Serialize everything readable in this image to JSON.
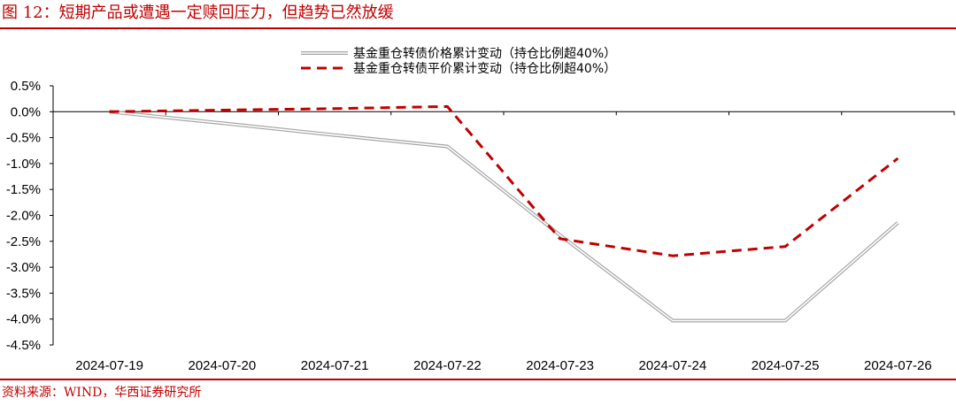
{
  "header": {
    "title": "图 12：短期产品或遭遇一定赎回压力，但趋势已然放缓"
  },
  "footer": {
    "source": "资料来源：WIND，华西证券研究所"
  },
  "colors": {
    "accent": "#c00000",
    "series_1": "#a6a6a6",
    "series_2": "#c00000"
  },
  "chart_data": {
    "type": "line",
    "categories": [
      "2024-07-19",
      "2024-07-20",
      "2024-07-21",
      "2024-07-22",
      "2024-07-23",
      "2024-07-24",
      "2024-07-25",
      "2024-07-26"
    ],
    "y_ticks": [
      "0.5%",
      "0.0%",
      "-0.5%",
      "-1.0%",
      "-1.5%",
      "-2.0%",
      "-2.5%",
      "-3.0%",
      "-3.5%",
      "-4.0%",
      "-4.5%"
    ],
    "ylim": [
      -4.5,
      0.5
    ],
    "ytick_step": 0.5,
    "unit": "%",
    "grid": false,
    "legend_position": "top-right",
    "series": [
      {
        "name": "基金重仓转债价格累计变动（持仓比例超40%）",
        "style": "solid-double",
        "values": [
          0.0,
          -0.22,
          -0.45,
          -0.67,
          -2.38,
          -4.03,
          -4.03,
          -2.14
        ]
      },
      {
        "name": "基金重仓转债平价累计变动（持仓比例超40%）",
        "style": "dashed",
        "values": [
          0.0,
          0.03,
          0.06,
          0.1,
          -2.45,
          -2.78,
          -2.6,
          -0.9
        ]
      }
    ]
  }
}
